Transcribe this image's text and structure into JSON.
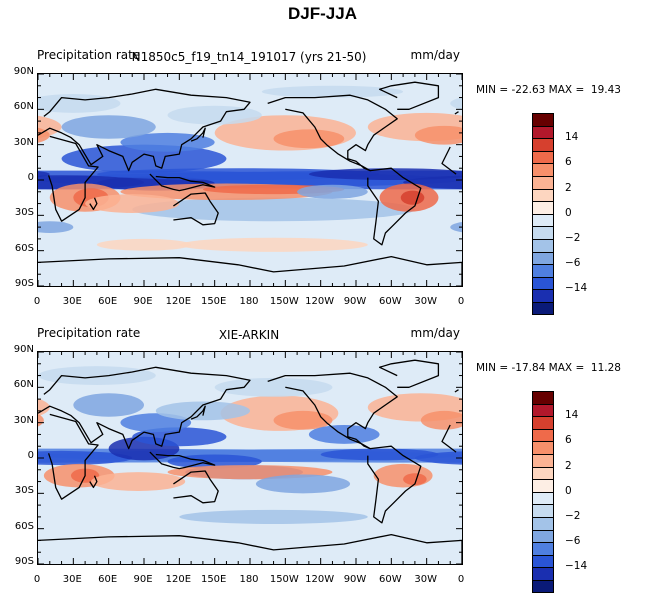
{
  "title": "DJF-JJA",
  "panels": [
    {
      "left_label": "Precipitation rate",
      "center_label": "N1850c5_f19_tn14_191017 (yrs 21-50)",
      "right_label": "mm/day",
      "min_max": "MIN = -22.63 MAX =  19.43"
    },
    {
      "left_label": "Precipitation rate",
      "center_label": "XIE-ARKIN",
      "right_label": "mm/day",
      "min_max": "MIN = -17.84 MAX =  11.28"
    }
  ],
  "lat_ticks": [
    "90N",
    "60N",
    "30N",
    "0",
    "30S",
    "60S",
    "90S"
  ],
  "lon_ticks": [
    "0",
    "30E",
    "60E",
    "90E",
    "120E",
    "150E",
    "180",
    "150W",
    "120W",
    "90W",
    "60W",
    "30W",
    "0"
  ],
  "colorbar": {
    "colors": [
      "#660000",
      "#b2182b",
      "#d6402e",
      "#ef6a4a",
      "#f7906b",
      "#fbb394",
      "#fdd6c0",
      "#fdeee4",
      "#deebf7",
      "#c6dbef",
      "#a3c3e8",
      "#7fa6e0",
      "#4f7fe0",
      "#2a55d6",
      "#1a2fb0",
      "#0a1a78"
    ],
    "labels": [
      "14",
      "6",
      "2",
      "0",
      "-2",
      "-6",
      "-14"
    ]
  }
}
